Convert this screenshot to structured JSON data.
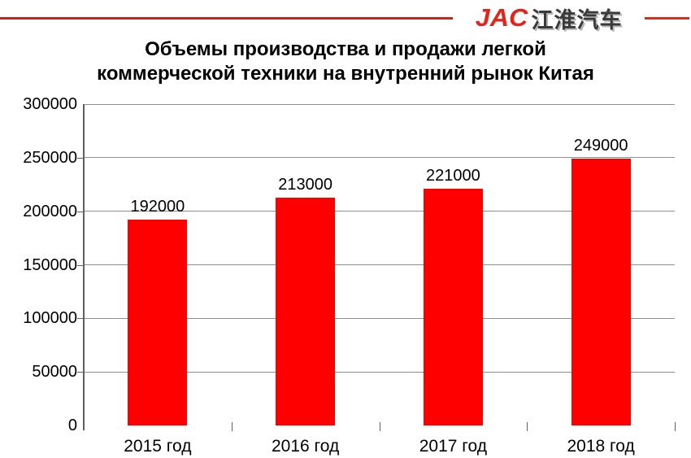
{
  "header": {
    "logo_latin": "JAC",
    "logo_cn": "江淮汽车"
  },
  "title": {
    "line1": "Объемы производства и продажи легкой",
    "line2": "коммерческой техники на внутренний рынок Китая"
  },
  "chart_data": {
    "type": "bar",
    "title": "Объемы производства и продажи легкой коммерческой техники на внутренний рынок Китая",
    "categories": [
      "2015 год",
      "2016 год",
      "2017 год",
      "2018 год"
    ],
    "values": [
      192000,
      213000,
      221000,
      249000
    ],
    "value_labels": [
      "192000",
      "213000",
      "221000",
      "249000"
    ],
    "y_ticks": [
      0,
      50000,
      100000,
      150000,
      200000,
      250000,
      300000
    ],
    "ylim": [
      0,
      300000
    ],
    "xlabel": "",
    "ylabel": "",
    "grid": true,
    "legend": false,
    "bar_color": "#ff0000",
    "gridline_color": "#8f8f8f",
    "axis_color": "#5f5f5f",
    "text_color": "#000000"
  },
  "colors": {
    "rule_left_red": "#c42a1c",
    "rule_right_red": "#df2c1b",
    "logo_red": "#e2251b",
    "logo_cn_gray": "#3a3a3a"
  }
}
